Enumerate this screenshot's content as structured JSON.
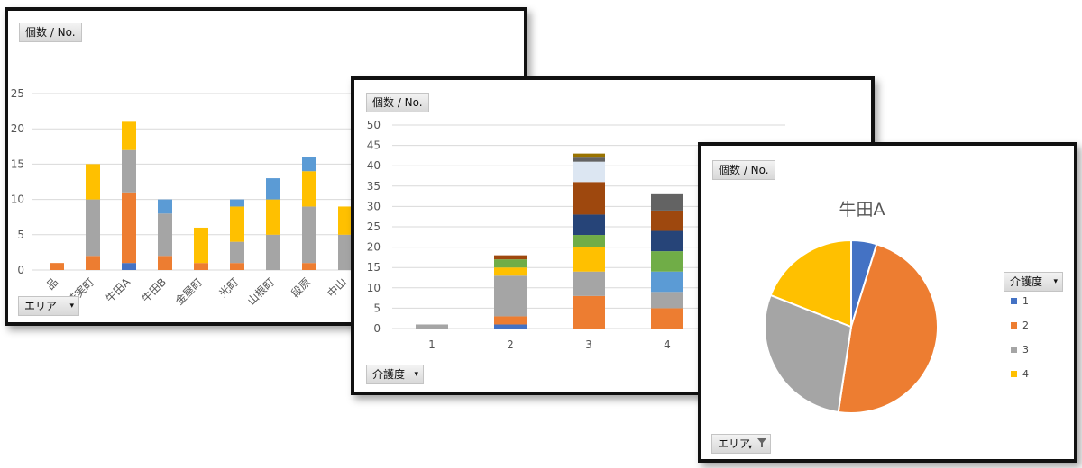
{
  "left_chart": {
    "field_button": "個数 / No.",
    "axis_button": "エリア",
    "dropdown_glyph": "▾"
  },
  "mid_chart": {
    "field_button": "個数 / No.",
    "axis_button": "介護度",
    "dropdown_glyph": "▾"
  },
  "right_chart": {
    "field_button": "個数 / No.",
    "axis_button": "エリア",
    "legend_button": "介護度",
    "dropdown_glyph": "▾",
    "filter_icon": "filter-icon"
  },
  "chart_data": [
    {
      "type": "bar",
      "stacked": true,
      "categories": [
        "品",
        "若実町",
        "牛田A",
        "牛田B",
        "金屋町",
        "光町",
        "山根町",
        "段原",
        "中山"
      ],
      "series": [
        {
          "color": "#4472C4",
          "values": [
            0,
            0,
            1,
            0,
            0,
            0,
            0,
            0,
            0
          ]
        },
        {
          "color": "#ED7D31",
          "values": [
            1,
            2,
            10,
            2,
            1,
            1,
            0,
            1,
            0
          ]
        },
        {
          "color": "#A5A5A5",
          "values": [
            0,
            8,
            6,
            6,
            0,
            3,
            5,
            8,
            5
          ]
        },
        {
          "color": "#FFC000",
          "values": [
            0,
            5,
            4,
            0,
            5,
            5,
            5,
            5,
            4
          ]
        },
        {
          "color": "#5B9BD5",
          "values": [
            0,
            0,
            0,
            2,
            0,
            1,
            3,
            2,
            0
          ]
        }
      ],
      "yticks": [
        0,
        5,
        10,
        15,
        20,
        25
      ],
      "ylim": [
        0,
        25
      ],
      "grid": true
    },
    {
      "type": "bar",
      "stacked": true,
      "categories": [
        "1",
        "2",
        "3",
        "4"
      ],
      "series": [
        {
          "color": "#4472C4",
          "values": [
            0,
            1,
            0,
            0
          ]
        },
        {
          "color": "#ED7D31",
          "values": [
            0,
            2,
            8,
            5
          ]
        },
        {
          "color": "#A5A5A5",
          "values": [
            1,
            10,
            6,
            4
          ]
        },
        {
          "color": "#FFC000",
          "values": [
            0,
            2,
            6,
            0
          ]
        },
        {
          "color": "#5B9BD5",
          "values": [
            0,
            0,
            0,
            5
          ]
        },
        {
          "color": "#70AD47",
          "values": [
            0,
            2,
            3,
            5
          ]
        },
        {
          "color": "#264478",
          "values": [
            0,
            0,
            5,
            5
          ]
        },
        {
          "color": "#9E480E",
          "values": [
            0,
            1,
            8,
            5
          ]
        },
        {
          "color": "#DCE6F2",
          "values": [
            0,
            0,
            5,
            0
          ]
        },
        {
          "color": "#636363",
          "values": [
            0,
            0,
            1,
            4
          ]
        },
        {
          "color": "#997300",
          "values": [
            0,
            0,
            1,
            0
          ]
        }
      ],
      "yticks": [
        0,
        5,
        10,
        15,
        20,
        25,
        30,
        35,
        40,
        45,
        50
      ],
      "ylim": [
        0,
        50
      ],
      "grid": true
    },
    {
      "type": "pie",
      "title": "牛田A",
      "slices": [
        {
          "label": "1",
          "value": 1,
          "color": "#4472C4"
        },
        {
          "label": "2",
          "value": 10,
          "color": "#ED7D31"
        },
        {
          "label": "3",
          "value": 6,
          "color": "#A5A5A5"
        },
        {
          "label": "4",
          "value": 4,
          "color": "#FFC000"
        }
      ],
      "legend_position": "right"
    }
  ]
}
